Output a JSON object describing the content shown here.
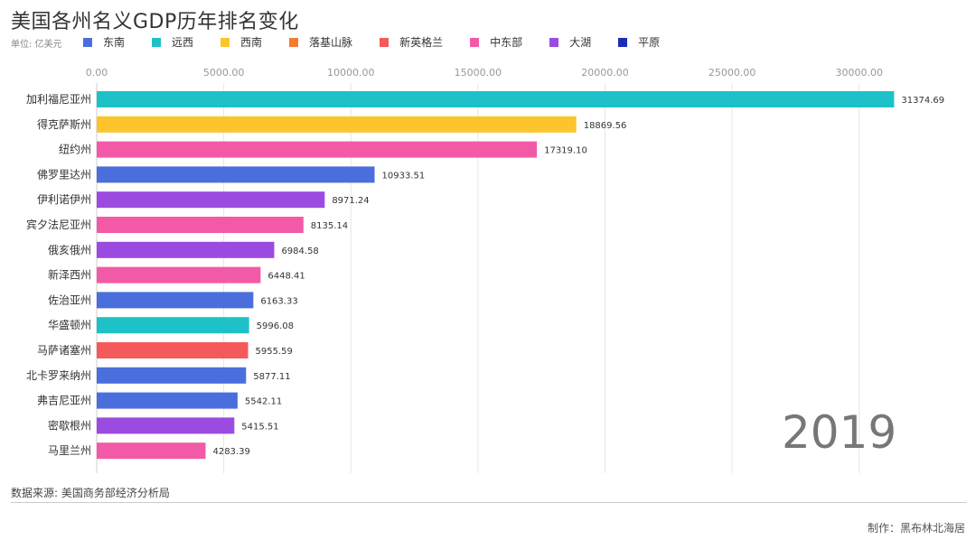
{
  "header": {
    "title": "美国各州名义GDP历年排名变化",
    "unit": "单位: 亿美元"
  },
  "legend": [
    {
      "label": "东南",
      "color": "#4a6edb"
    },
    {
      "label": "远西",
      "color": "#1ec1c8"
    },
    {
      "label": "西南",
      "color": "#fcc52d"
    },
    {
      "label": "落基山脉",
      "color": "#f47c2f"
    },
    {
      "label": "新英格兰",
      "color": "#f55a5a"
    },
    {
      "label": "中东部",
      "color": "#f25aa8"
    },
    {
      "label": "大湖",
      "color": "#9b4be0"
    },
    {
      "label": "平原",
      "color": "#1c2db5"
    }
  ],
  "chart_data": {
    "type": "bar",
    "orientation": "horizontal",
    "categories": [
      "加利福尼亚州",
      "得克萨斯州",
      "纽约州",
      "佛罗里达州",
      "伊利诺伊州",
      "宾夕法尼亚州",
      "俄亥俄州",
      "新泽西州",
      "佐治亚州",
      "华盛顿州",
      "马萨诸塞州",
      "北卡罗来纳州",
      "弗吉尼亚州",
      "密歇根州",
      "马里兰州"
    ],
    "values": [
      31374.69,
      18869.56,
      17319.1,
      10933.51,
      8971.24,
      8135.14,
      6984.58,
      6448.41,
      6163.33,
      5996.08,
      5955.59,
      5877.11,
      5542.11,
      5415.51,
      4283.39
    ],
    "value_labels": [
      "31374.69",
      "18869.56",
      "17319.10",
      "10933.51",
      "8971.24",
      "8135.14",
      "6984.58",
      "6448.41",
      "6163.33",
      "5996.08",
      "5955.59",
      "5877.11",
      "5542.11",
      "5415.51",
      "4283.39"
    ],
    "regions": [
      "远西",
      "西南",
      "中东部",
      "东南",
      "大湖",
      "中东部",
      "大湖",
      "中东部",
      "东南",
      "远西",
      "新英格兰",
      "东南",
      "东南",
      "大湖",
      "中东部"
    ],
    "xlim": [
      0,
      32000
    ],
    "xticks": [
      0,
      5000,
      10000,
      15000,
      20000,
      25000,
      30000
    ],
    "xtick_labels": [
      "0.00",
      "5000.00",
      "10000.00",
      "15000.00",
      "20000.00",
      "25000.00",
      "30000.00"
    ],
    "grid": true,
    "legend_position": "top"
  },
  "year": "2019",
  "footer": {
    "source": "数据来源: 美国商务部经济分析局",
    "credit": "制作：黑布林北海居"
  }
}
